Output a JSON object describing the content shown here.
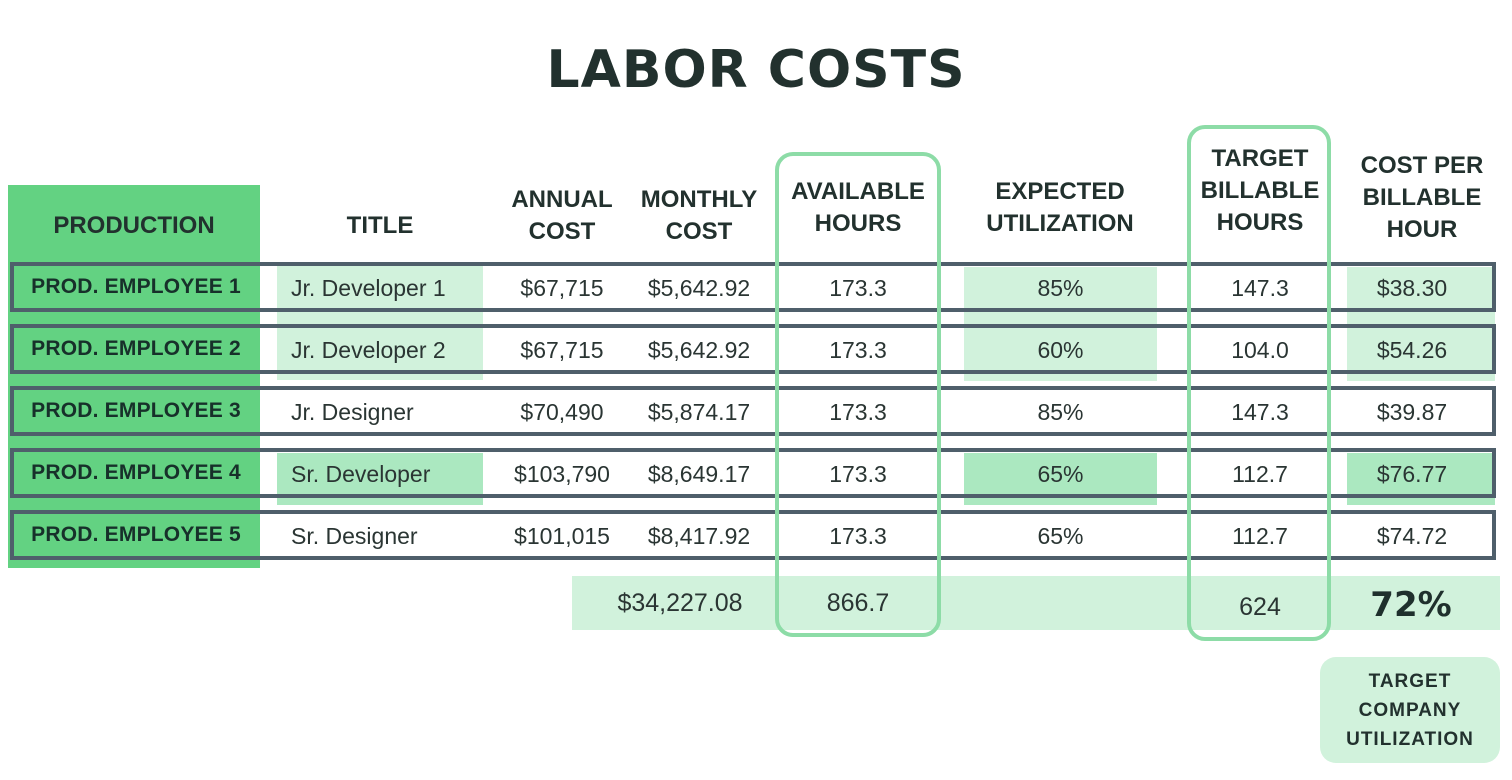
{
  "chart_data": {
    "type": "table",
    "title": "LABOR COSTS",
    "columns": [
      "PRODUCTION",
      "TITLE",
      "ANNUAL\nCOST",
      "MONTHLY\nCOST",
      "AVAILABLE\nHOURS",
      "EXPECTED\nUTILIZATION",
      "TARGET\nBILLABLE\nHOURS",
      "COST PER\nBILLABLE\nHOUR"
    ],
    "rows": [
      [
        "PROD. EMPLOYEE 1",
        "Jr. Developer 1",
        "$67,715",
        "$5,642.92",
        "173.3",
        "85%",
        "147.3",
        "$38.30"
      ],
      [
        "PROD. EMPLOYEE 2",
        "Jr. Developer 2",
        "$67,715",
        "$5,642.92",
        "173.3",
        "60%",
        "104.0",
        "$54.26"
      ],
      [
        "PROD. EMPLOYEE 3",
        "Jr. Designer",
        "$70,490",
        "$5,874.17",
        "173.3",
        "85%",
        "147.3",
        "$39.87"
      ],
      [
        "PROD. EMPLOYEE 4",
        "Sr. Developer",
        "$103,790",
        "$8,649.17",
        "173.3",
        "65%",
        "112.7",
        "$76.77"
      ],
      [
        "PROD. EMPLOYEE 5",
        "Sr. Designer",
        "$101,015",
        "$8,417.92",
        "173.3",
        "65%",
        "112.7",
        "$74.72"
      ]
    ],
    "totals": {
      "monthly_cost": "$34,227.08",
      "available_hours": "866.7",
      "target_billable_hours": "624",
      "target_company_utilization": "72%"
    },
    "utilization_badge": "TARGET\nCOMPANY\nUTILIZATION"
  },
  "colors": {
    "production_green": "#63d282",
    "highlight_light": "#d1f2dc",
    "highlight_mid": "#abe8c0",
    "row_border": "#4f5f6b",
    "pill_border": "#8ddca7"
  }
}
